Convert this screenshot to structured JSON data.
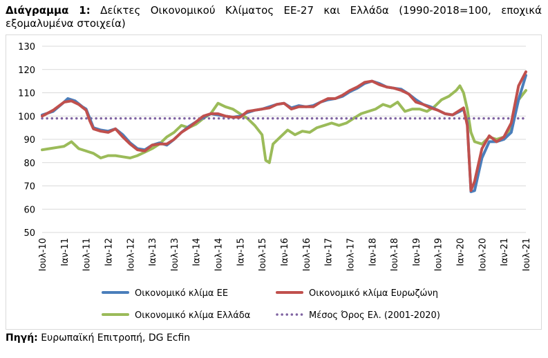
{
  "title": {
    "prefix": "Διάγραμμα 1:",
    "text": "Δείκτες Οικονομικού Κλίματος ΕΕ-27 και Ελλάδα (1990-2018=100, εποχικά εξομαλυμένα στοιχεία)"
  },
  "source": {
    "prefix": "Πηγή:",
    "text": "Ευρωπαϊκή Επιτροπή, DG Ecfin"
  },
  "colors": {
    "eu": "#4a7ebb",
    "euro": "#c0504d",
    "greece": "#9bbb59",
    "avg": "#8064a2",
    "grid": "#d9d9d9"
  },
  "chart_data": {
    "type": "line",
    "ylim": [
      50,
      130
    ],
    "yticks": [
      50,
      60,
      70,
      80,
      90,
      100,
      110,
      120,
      130
    ],
    "grid": "horizontal",
    "legend_position": "bottom",
    "xlim": [
      "2010-07",
      "2021-07"
    ],
    "xtick_labels": [
      "Ιουλ-10",
      "Ιαν-11",
      "Ιουλ-11",
      "Ιαν-12",
      "Ιουλ-12",
      "Ιαν-13",
      "Ιουλ-13",
      "Ιαν-14",
      "Ιουλ-14",
      "Ιαν-15",
      "Ιουλ-15",
      "Ιαν-16",
      "Ιουλ-16",
      "Ιαν-17",
      "Ιουλ-17",
      "Ιαν-18",
      "Ιουλ-18",
      "Ιαν-19",
      "Ιουλ-19",
      "Ιαν-20",
      "Ιουλ-20",
      "Ιαν-21",
      "Ιουλ-21"
    ],
    "series": [
      {
        "name": "Οικονομικό κλίμα ΕΕ",
        "color_key": "eu",
        "points": [
          [
            "2010-07",
            100.5
          ],
          [
            "2010-10",
            102
          ],
          [
            "2011-01",
            106
          ],
          [
            "2011-02",
            107.5
          ],
          [
            "2011-04",
            106.5
          ],
          [
            "2011-06",
            104
          ],
          [
            "2011-07",
            103
          ],
          [
            "2011-08",
            99
          ],
          [
            "2011-09",
            95
          ],
          [
            "2011-11",
            94
          ],
          [
            "2012-01",
            93.5
          ],
          [
            "2012-03",
            94.5
          ],
          [
            "2012-05",
            92
          ],
          [
            "2012-07",
            88.5
          ],
          [
            "2012-09",
            86
          ],
          [
            "2012-11",
            85.5
          ],
          [
            "2013-01",
            87.5
          ],
          [
            "2013-03",
            88.5
          ],
          [
            "2013-05",
            87.5
          ],
          [
            "2013-07",
            90
          ],
          [
            "2013-09",
            93
          ],
          [
            "2013-11",
            95.5
          ],
          [
            "2014-01",
            97.5
          ],
          [
            "2014-03",
            99.5
          ],
          [
            "2014-05",
            101
          ],
          [
            "2014-07",
            100.5
          ],
          [
            "2014-09",
            100
          ],
          [
            "2014-11",
            99.5
          ],
          [
            "2015-01",
            100
          ],
          [
            "2015-03",
            101.5
          ],
          [
            "2015-05",
            102.5
          ],
          [
            "2015-07",
            103
          ],
          [
            "2015-09",
            104
          ],
          [
            "2015-11",
            105
          ],
          [
            "2016-01",
            105.5
          ],
          [
            "2016-03",
            103.5
          ],
          [
            "2016-05",
            104.5
          ],
          [
            "2016-07",
            104
          ],
          [
            "2016-09",
            104.5
          ],
          [
            "2016-11",
            106
          ],
          [
            "2017-01",
            107
          ],
          [
            "2017-03",
            107.5
          ],
          [
            "2017-05",
            108.5
          ],
          [
            "2017-07",
            110.5
          ],
          [
            "2017-09",
            112
          ],
          [
            "2017-11",
            114
          ],
          [
            "2018-01",
            115
          ],
          [
            "2018-03",
            114
          ],
          [
            "2018-05",
            112.5
          ],
          [
            "2018-07",
            112
          ],
          [
            "2018-09",
            111.5
          ],
          [
            "2018-11",
            109.5
          ],
          [
            "2019-01",
            107
          ],
          [
            "2019-03",
            105
          ],
          [
            "2019-05",
            104
          ],
          [
            "2019-07",
            102.5
          ],
          [
            "2019-09",
            101
          ],
          [
            "2019-11",
            100.5
          ],
          [
            "2020-01",
            102
          ],
          [
            "2020-02",
            103
          ],
          [
            "2020-03",
            97
          ],
          [
            "2020-04",
            67.5
          ],
          [
            "2020-05",
            68
          ],
          [
            "2020-06",
            75
          ],
          [
            "2020-07",
            82
          ],
          [
            "2020-09",
            89
          ],
          [
            "2020-11",
            89
          ],
          [
            "2021-01",
            90
          ],
          [
            "2021-03",
            93
          ],
          [
            "2021-05",
            107
          ],
          [
            "2021-07",
            117.5
          ]
        ]
      },
      {
        "name": "Οικονομικό κλίμα Ευρωζώνη",
        "color_key": "euro",
        "points": [
          [
            "2010-07",
            100
          ],
          [
            "2010-10",
            102.5
          ],
          [
            "2011-01",
            106
          ],
          [
            "2011-03",
            106.5
          ],
          [
            "2011-05",
            105
          ],
          [
            "2011-07",
            102.5
          ],
          [
            "2011-08",
            98
          ],
          [
            "2011-09",
            94.5
          ],
          [
            "2011-11",
            93.5
          ],
          [
            "2012-01",
            93
          ],
          [
            "2012-03",
            94.5
          ],
          [
            "2012-05",
            91
          ],
          [
            "2012-07",
            88
          ],
          [
            "2012-09",
            85.5
          ],
          [
            "2012-11",
            85
          ],
          [
            "2013-01",
            87.5
          ],
          [
            "2013-03",
            88
          ],
          [
            "2013-05",
            88
          ],
          [
            "2013-07",
            90
          ],
          [
            "2013-09",
            93
          ],
          [
            "2013-11",
            95
          ],
          [
            "2014-01",
            97.5
          ],
          [
            "2014-03",
            100
          ],
          [
            "2014-05",
            101
          ],
          [
            "2014-07",
            101
          ],
          [
            "2014-09",
            100
          ],
          [
            "2014-11",
            99.5
          ],
          [
            "2015-01",
            99.5
          ],
          [
            "2015-03",
            102
          ],
          [
            "2015-05",
            102.5
          ],
          [
            "2015-07",
            103
          ],
          [
            "2015-09",
            103.5
          ],
          [
            "2015-11",
            105
          ],
          [
            "2016-01",
            105.5
          ],
          [
            "2016-03",
            103
          ],
          [
            "2016-05",
            104
          ],
          [
            "2016-07",
            104
          ],
          [
            "2016-09",
            104
          ],
          [
            "2016-11",
            106
          ],
          [
            "2017-01",
            107.5
          ],
          [
            "2017-03",
            107.5
          ],
          [
            "2017-05",
            109
          ],
          [
            "2017-07",
            111
          ],
          [
            "2017-09",
            112.5
          ],
          [
            "2017-11",
            114.5
          ],
          [
            "2018-01",
            115
          ],
          [
            "2018-03",
            113.5
          ],
          [
            "2018-05",
            112.5
          ],
          [
            "2018-07",
            112
          ],
          [
            "2018-09",
            111
          ],
          [
            "2018-11",
            109.5
          ],
          [
            "2019-01",
            106
          ],
          [
            "2019-03",
            105
          ],
          [
            "2019-05",
            103.5
          ],
          [
            "2019-07",
            102.5
          ],
          [
            "2019-09",
            101
          ],
          [
            "2019-11",
            100.5
          ],
          [
            "2020-01",
            102.5
          ],
          [
            "2020-02",
            103.5
          ],
          [
            "2020-03",
            96
          ],
          [
            "2020-04",
            68
          ],
          [
            "2020-05",
            72
          ],
          [
            "2020-06",
            79
          ],
          [
            "2020-07",
            86
          ],
          [
            "2020-09",
            91.5
          ],
          [
            "2020-11",
            89
          ],
          [
            "2021-01",
            91
          ],
          [
            "2021-03",
            97
          ],
          [
            "2021-05",
            113
          ],
          [
            "2021-07",
            119
          ]
        ]
      },
      {
        "name": "Οικονομικό κλίμα Ελλάδα",
        "color_key": "greece",
        "points": [
          [
            "2010-07",
            85.5
          ],
          [
            "2010-09",
            86
          ],
          [
            "2010-11",
            86.5
          ],
          [
            "2011-01",
            87
          ],
          [
            "2011-03",
            89
          ],
          [
            "2011-05",
            86
          ],
          [
            "2011-07",
            85
          ],
          [
            "2011-09",
            84
          ],
          [
            "2011-11",
            82
          ],
          [
            "2012-01",
            83
          ],
          [
            "2012-03",
            83
          ],
          [
            "2012-05",
            82.5
          ],
          [
            "2012-07",
            82
          ],
          [
            "2012-09",
            83
          ],
          [
            "2012-11",
            84.5
          ],
          [
            "2013-01",
            86
          ],
          [
            "2013-03",
            88
          ],
          [
            "2013-05",
            91
          ],
          [
            "2013-07",
            93
          ],
          [
            "2013-09",
            96
          ],
          [
            "2013-11",
            95
          ],
          [
            "2014-01",
            96.5
          ],
          [
            "2014-03",
            99
          ],
          [
            "2014-05",
            101
          ],
          [
            "2014-07",
            105.5
          ],
          [
            "2014-09",
            104
          ],
          [
            "2014-11",
            103
          ],
          [
            "2015-01",
            101
          ],
          [
            "2015-03",
            99
          ],
          [
            "2015-05",
            96
          ],
          [
            "2015-07",
            92
          ],
          [
            "2015-08",
            81
          ],
          [
            "2015-09",
            80
          ],
          [
            "2015-10",
            88
          ],
          [
            "2015-12",
            91
          ],
          [
            "2016-02",
            94
          ],
          [
            "2016-04",
            92
          ],
          [
            "2016-06",
            93.5
          ],
          [
            "2016-08",
            93
          ],
          [
            "2016-10",
            95
          ],
          [
            "2016-12",
            96
          ],
          [
            "2017-02",
            97
          ],
          [
            "2017-04",
            96
          ],
          [
            "2017-06",
            97
          ],
          [
            "2017-08",
            99
          ],
          [
            "2017-10",
            101
          ],
          [
            "2017-12",
            102
          ],
          [
            "2018-02",
            103
          ],
          [
            "2018-04",
            105
          ],
          [
            "2018-06",
            104
          ],
          [
            "2018-08",
            106
          ],
          [
            "2018-10",
            102
          ],
          [
            "2018-12",
            103
          ],
          [
            "2019-02",
            103
          ],
          [
            "2019-04",
            102
          ],
          [
            "2019-06",
            104
          ],
          [
            "2019-08",
            107
          ],
          [
            "2019-10",
            108.5
          ],
          [
            "2019-12",
            111
          ],
          [
            "2020-01",
            113
          ],
          [
            "2020-02",
            110
          ],
          [
            "2020-03",
            103
          ],
          [
            "2020-04",
            93
          ],
          [
            "2020-05",
            89
          ],
          [
            "2020-07",
            88
          ],
          [
            "2020-09",
            91
          ],
          [
            "2020-11",
            90
          ],
          [
            "2021-01",
            91
          ],
          [
            "2021-03",
            95
          ],
          [
            "2021-05",
            107
          ],
          [
            "2021-07",
            111
          ]
        ]
      },
      {
        "name": "Μέσος Όρος Ελ. (2001-2020)",
        "color_key": "avg",
        "style": "dotted",
        "points": [
          [
            "2010-07",
            99
          ],
          [
            "2021-07",
            99
          ]
        ]
      }
    ]
  }
}
